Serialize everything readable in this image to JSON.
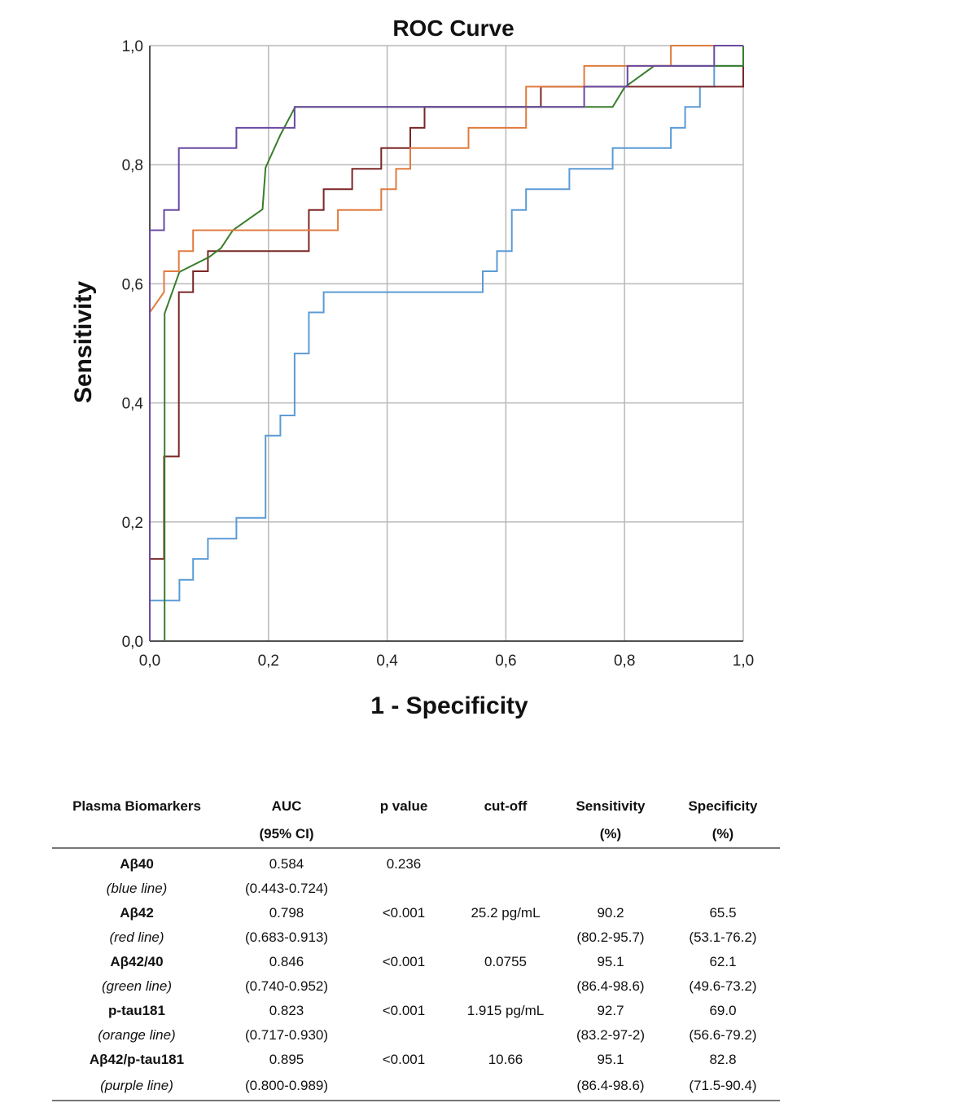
{
  "chart_data": {
    "type": "line",
    "title": "ROC Curve",
    "xlabel": "1 - Specificity",
    "ylabel": "Sensitivity",
    "xlim": [
      0,
      1
    ],
    "ylim": [
      0,
      1
    ],
    "grid": true,
    "x_ticks": [
      "0,0",
      "0,2",
      "0,4",
      "0,6",
      "0,8",
      "1,0"
    ],
    "y_ticks": [
      "0,0",
      "0,2",
      "0,4",
      "0,6",
      "0,8",
      "1,0"
    ],
    "series": [
      {
        "color": "#5b9bd5",
        "points": [
          [
            0,
            0
          ],
          [
            0,
            0.068
          ],
          [
            0.05,
            0.068
          ],
          [
            0.05,
            0.103
          ],
          [
            0.073,
            0.103
          ],
          [
            0.073,
            0.138
          ],
          [
            0.098,
            0.138
          ],
          [
            0.098,
            0.172
          ],
          [
            0.146,
            0.172
          ],
          [
            0.146,
            0.207
          ],
          [
            0.195,
            0.207
          ],
          [
            0.195,
            0.345
          ],
          [
            0.22,
            0.345
          ],
          [
            0.22,
            0.379
          ],
          [
            0.244,
            0.379
          ],
          [
            0.244,
            0.483
          ],
          [
            0.268,
            0.483
          ],
          [
            0.268,
            0.552
          ],
          [
            0.293,
            0.552
          ],
          [
            0.293,
            0.586
          ],
          [
            0.561,
            0.586
          ],
          [
            0.561,
            0.621
          ],
          [
            0.585,
            0.621
          ],
          [
            0.585,
            0.655
          ],
          [
            0.61,
            0.655
          ],
          [
            0.61,
            0.724
          ],
          [
            0.634,
            0.724
          ],
          [
            0.634,
            0.759
          ],
          [
            0.707,
            0.759
          ],
          [
            0.707,
            0.793
          ],
          [
            0.78,
            0.793
          ],
          [
            0.78,
            0.828
          ],
          [
            0.878,
            0.828
          ],
          [
            0.878,
            0.862
          ],
          [
            0.902,
            0.862
          ],
          [
            0.902,
            0.897
          ],
          [
            0.927,
            0.897
          ],
          [
            0.927,
            0.931
          ],
          [
            0.951,
            0.931
          ],
          [
            0.951,
            0.966
          ],
          [
            1,
            0.966
          ],
          [
            1,
            1
          ]
        ]
      },
      {
        "color": "#7b2626",
        "points": [
          [
            0,
            0
          ],
          [
            0,
            0.138
          ],
          [
            0.024,
            0.138
          ],
          [
            0.024,
            0.31
          ],
          [
            0.049,
            0.31
          ],
          [
            0.049,
            0.586
          ],
          [
            0.073,
            0.586
          ],
          [
            0.073,
            0.621
          ],
          [
            0.098,
            0.621
          ],
          [
            0.098,
            0.655
          ],
          [
            0.268,
            0.655
          ],
          [
            0.268,
            0.724
          ],
          [
            0.293,
            0.724
          ],
          [
            0.293,
            0.759
          ],
          [
            0.341,
            0.759
          ],
          [
            0.341,
            0.793
          ],
          [
            0.39,
            0.793
          ],
          [
            0.39,
            0.828
          ],
          [
            0.439,
            0.828
          ],
          [
            0.439,
            0.862
          ],
          [
            0.463,
            0.862
          ],
          [
            0.463,
            0.897
          ],
          [
            0.659,
            0.897
          ],
          [
            0.659,
            0.931
          ],
          [
            1,
            0.931
          ],
          [
            1,
            1
          ]
        ]
      },
      {
        "color": "#3a7d2c",
        "points": [
          [
            0.025,
            0
          ],
          [
            0.025,
            0.55
          ],
          [
            0.05,
            0.62
          ],
          [
            0.07,
            0.63
          ],
          [
            0.1,
            0.645
          ],
          [
            0.12,
            0.66
          ],
          [
            0.14,
            0.69
          ],
          [
            0.19,
            0.725
          ],
          [
            0.195,
            0.795
          ],
          [
            0.22,
            0.85
          ],
          [
            0.245,
            0.897
          ],
          [
            0.78,
            0.897
          ],
          [
            0.8,
            0.93
          ],
          [
            0.85,
            0.966
          ],
          [
            1,
            0.966
          ],
          [
            1,
            1
          ]
        ]
      },
      {
        "color": "#e07b3f",
        "points": [
          [
            0,
            0
          ],
          [
            0,
            0.552
          ],
          [
            0.024,
            0.586
          ],
          [
            0.024,
            0.621
          ],
          [
            0.049,
            0.621
          ],
          [
            0.049,
            0.655
          ],
          [
            0.073,
            0.655
          ],
          [
            0.073,
            0.69
          ],
          [
            0.317,
            0.69
          ],
          [
            0.317,
            0.724
          ],
          [
            0.39,
            0.724
          ],
          [
            0.39,
            0.759
          ],
          [
            0.415,
            0.759
          ],
          [
            0.415,
            0.793
          ],
          [
            0.439,
            0.793
          ],
          [
            0.439,
            0.828
          ],
          [
            0.537,
            0.828
          ],
          [
            0.537,
            0.862
          ],
          [
            0.634,
            0.862
          ],
          [
            0.634,
            0.931
          ],
          [
            0.732,
            0.931
          ],
          [
            0.732,
            0.966
          ],
          [
            0.878,
            0.966
          ],
          [
            0.878,
            1
          ],
          [
            1,
            1
          ]
        ]
      },
      {
        "color": "#6a4aa0",
        "points": [
          [
            0,
            0
          ],
          [
            0,
            0.69
          ],
          [
            0.024,
            0.69
          ],
          [
            0.024,
            0.724
          ],
          [
            0.049,
            0.724
          ],
          [
            0.049,
            0.828
          ],
          [
            0.146,
            0.828
          ],
          [
            0.146,
            0.862
          ],
          [
            0.244,
            0.862
          ],
          [
            0.244,
            0.897
          ],
          [
            0.732,
            0.897
          ],
          [
            0.732,
            0.931
          ],
          [
            0.805,
            0.931
          ],
          [
            0.805,
            0.966
          ],
          [
            0.951,
            0.966
          ],
          [
            0.951,
            1
          ],
          [
            1,
            1
          ]
        ]
      }
    ]
  },
  "table": {
    "headers_row1": [
      "Plasma Biomarkers",
      "AUC",
      "p value",
      "cut-off",
      "Sensitivity",
      "Specificity"
    ],
    "headers_row2": [
      "",
      "(95% CI)",
      "",
      "",
      "(%)",
      "(%)"
    ],
    "rows": [
      {
        "name": "Aβ40",
        "note": "(blue line)",
        "auc": "0.584",
        "ci": "(0.443-0.724)",
        "p": "0.236",
        "cutoff": "",
        "sens": "",
        "sens_ci": "",
        "spec": "",
        "spec_ci": ""
      },
      {
        "name": "Aβ42",
        "note": "(red line)",
        "auc": "0.798",
        "ci": "(0.683-0.913)",
        "p": "<0.001",
        "cutoff": "25.2 pg/mL",
        "sens": "90.2",
        "sens_ci": "(80.2-95.7)",
        "spec": "65.5",
        "spec_ci": "(53.1-76.2)"
      },
      {
        "name": "Aβ42/40",
        "note": "(green line)",
        "auc": "0.846",
        "ci": "(0.740-0.952)",
        "p": "<0.001",
        "cutoff": "0.0755",
        "sens": "95.1",
        "sens_ci": "(86.4-98.6)",
        "spec": "62.1",
        "spec_ci": "(49.6-73.2)"
      },
      {
        "name": "p-tau181",
        "note": "(orange line)",
        "auc": "0.823",
        "ci": "(0.717-0.930)",
        "p": "<0.001",
        "cutoff": "1.915 pg/mL",
        "sens": "92.7",
        "sens_ci": "(83.2-97-2)",
        "spec": "69.0",
        "spec_ci": "(56.6-79.2)"
      },
      {
        "name": "Aβ42/p-tau181",
        "note": "(purple line)",
        "auc": "0.895",
        "ci": "(0.800-0.989)",
        "p": "<0.001",
        "cutoff": "10.66",
        "sens": "95.1",
        "sens_ci": "(86.4-98.6)",
        "spec": "82.8",
        "spec_ci": "(71.5-90.4)"
      }
    ]
  }
}
